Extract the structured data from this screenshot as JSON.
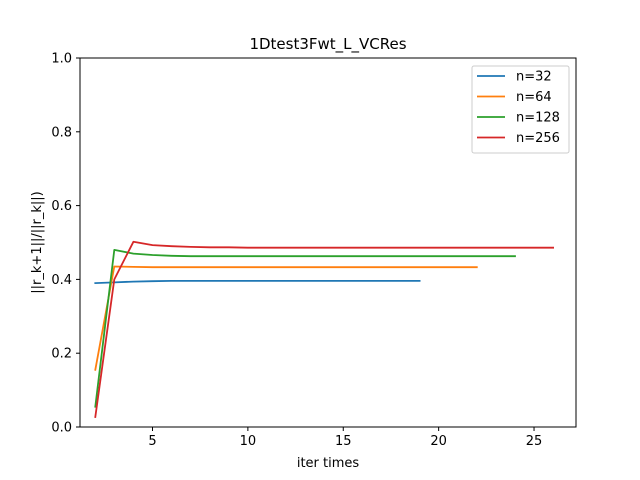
{
  "chart_data": {
    "type": "line",
    "title": "1Dtest3Fwt_L_VCRes",
    "xlabel": "iter times",
    "ylabel": "||r_k+1||/||r_k||)",
    "xlim": [
      1.2,
      27.2
    ],
    "ylim": [
      0.0,
      1.0
    ],
    "xticks": [
      5,
      10,
      15,
      20,
      25
    ],
    "yticks": [
      0.0,
      0.2,
      0.4,
      0.6,
      0.8,
      1.0
    ],
    "xtick_labels": [
      "5",
      "10",
      "15",
      "20",
      "25"
    ],
    "ytick_labels": [
      "0.0",
      "0.2",
      "0.4",
      "0.6",
      "0.8",
      "1.0"
    ],
    "grid": false,
    "legend_position": "top-right",
    "series": [
      {
        "name": "n=32",
        "color": "#1f77b4",
        "x": [
          2,
          3,
          4,
          5,
          6,
          7,
          8,
          9,
          10,
          11,
          12,
          13,
          14,
          15,
          16,
          17,
          18,
          19
        ],
        "y": [
          0.39,
          0.392,
          0.394,
          0.395,
          0.396,
          0.396,
          0.396,
          0.396,
          0.396,
          0.396,
          0.396,
          0.396,
          0.396,
          0.396,
          0.396,
          0.396,
          0.396,
          0.396
        ]
      },
      {
        "name": "n=64",
        "color": "#ff7f0e",
        "x": [
          2,
          3,
          4,
          5,
          6,
          7,
          8,
          9,
          10,
          11,
          12,
          13,
          14,
          15,
          16,
          17,
          18,
          19,
          20,
          21,
          22
        ],
        "y": [
          0.155,
          0.435,
          0.434,
          0.433,
          0.433,
          0.433,
          0.433,
          0.433,
          0.433,
          0.433,
          0.433,
          0.433,
          0.433,
          0.433,
          0.433,
          0.433,
          0.433,
          0.433,
          0.433,
          0.433,
          0.433
        ]
      },
      {
        "name": "n=128",
        "color": "#2ca02c",
        "x": [
          2,
          3,
          4,
          5,
          6,
          7,
          8,
          9,
          10,
          11,
          12,
          13,
          14,
          15,
          16,
          17,
          18,
          19,
          20,
          21,
          22,
          23,
          24
        ],
        "y": [
          0.055,
          0.48,
          0.47,
          0.466,
          0.464,
          0.463,
          0.463,
          0.463,
          0.463,
          0.463,
          0.463,
          0.463,
          0.463,
          0.463,
          0.463,
          0.463,
          0.463,
          0.463,
          0.463,
          0.463,
          0.463,
          0.463,
          0.463
        ]
      },
      {
        "name": "n=256",
        "color": "#d62728",
        "x": [
          2,
          3,
          4,
          5,
          6,
          7,
          8,
          9,
          10,
          11,
          12,
          13,
          14,
          15,
          16,
          17,
          18,
          19,
          20,
          21,
          22,
          23,
          24,
          25,
          26
        ],
        "y": [
          0.027,
          0.4,
          0.502,
          0.493,
          0.49,
          0.488,
          0.487,
          0.487,
          0.486,
          0.486,
          0.486,
          0.486,
          0.486,
          0.486,
          0.486,
          0.486,
          0.486,
          0.486,
          0.486,
          0.486,
          0.486,
          0.486,
          0.486,
          0.486,
          0.486
        ]
      }
    ]
  }
}
